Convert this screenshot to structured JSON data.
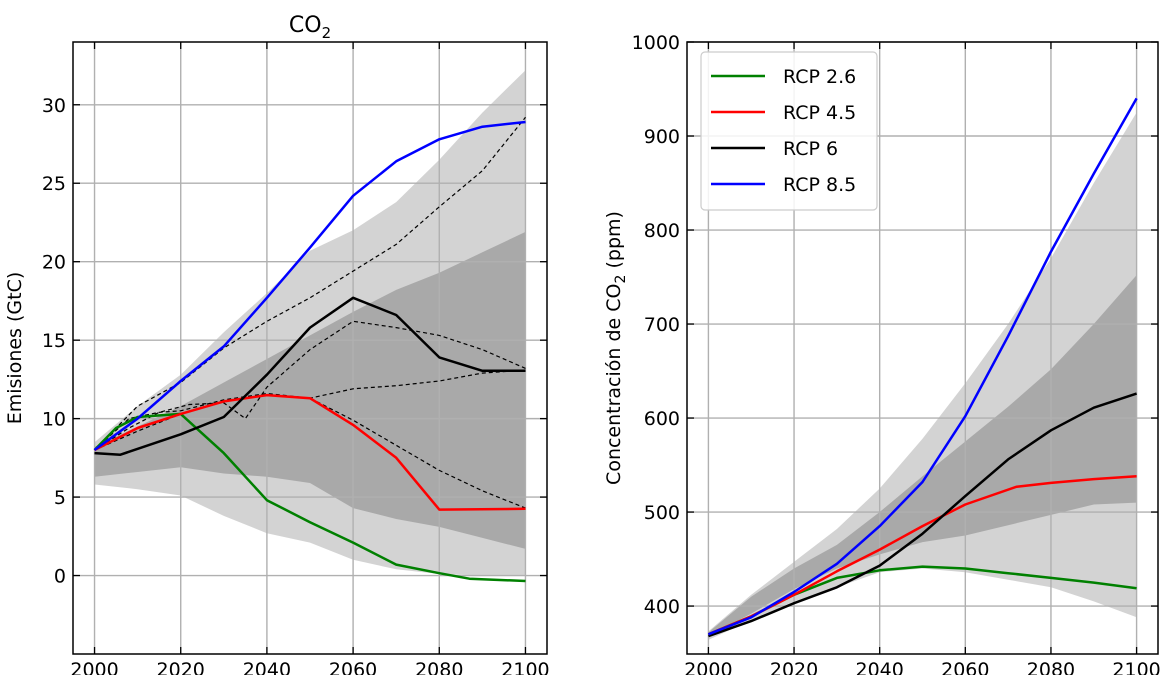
{
  "chart_data": [
    {
      "type": "line",
      "title": "CO",
      "title_subscript": "2",
      "xlabel": "",
      "ylabel": "Emisiones (GtC)",
      "xlim": [
        1995,
        2105
      ],
      "ylim": [
        -5,
        34
      ],
      "xticks": [
        2000,
        2020,
        2040,
        2060,
        2080,
        2100
      ],
      "xtick_labels": [
        "2000",
        "2020",
        "2040",
        "2060",
        "2080",
        "2100"
      ],
      "yticks": [
        0,
        5,
        10,
        15,
        20,
        25,
        30
      ],
      "ytick_labels": [
        "0",
        "5",
        "10",
        "15",
        "20",
        "25",
        "30"
      ],
      "grid": true,
      "legend": "",
      "bands": [
        {
          "color": "#d3d3d3",
          "x": [
            2000,
            2010,
            2020,
            2030,
            2040,
            2050,
            2060,
            2070,
            2080,
            2090,
            2100
          ],
          "lower": [
            5.8,
            5.5,
            5.1,
            3.8,
            2.7,
            2.1,
            1.0,
            0.4,
            0.1,
            0.0,
            0.0
          ],
          "upper": [
            8.5,
            10.8,
            12.8,
            15.5,
            18.0,
            20.7,
            22.0,
            23.8,
            26.5,
            29.5,
            32.2
          ]
        },
        {
          "color": "#a9a9a9",
          "x": [
            2000,
            2010,
            2020,
            2030,
            2040,
            2050,
            2060,
            2070,
            2080,
            2090,
            2100
          ],
          "lower": [
            6.3,
            6.6,
            6.9,
            6.5,
            6.3,
            5.9,
            4.3,
            3.6,
            3.1,
            2.4,
            1.7
          ],
          "upper": [
            8.2,
            9.5,
            10.8,
            12.3,
            13.8,
            15.3,
            16.8,
            18.2,
            19.3,
            20.6,
            21.9
          ]
        }
      ],
      "dashed_series": [
        {
          "x": [
            2000,
            2010,
            2020,
            2030,
            2040,
            2050,
            2060,
            2070,
            2080,
            2090,
            2100
          ],
          "values": [
            8.0,
            10.8,
            12.3,
            14.5,
            16.2,
            17.7,
            19.4,
            21.1,
            23.5,
            25.8,
            29.2
          ]
        },
        {
          "x": [
            2000,
            2008,
            2015,
            2020,
            2030,
            2040,
            2050,
            2060,
            2070,
            2080,
            2090,
            2100
          ],
          "values": [
            8.0,
            10.0,
            10.4,
            10.5,
            11.2,
            11.6,
            11.3,
            9.9,
            8.3,
            6.7,
            5.4,
            4.3
          ]
        },
        {
          "x": [
            2000,
            2010,
            2020,
            2030,
            2040,
            2050,
            2060,
            2070,
            2080,
            2090,
            2100
          ],
          "values": [
            8.0,
            9.2,
            10.3,
            11.1,
            11.5,
            11.3,
            11.9,
            12.1,
            12.4,
            12.9,
            13.1
          ]
        },
        {
          "x": [
            2000,
            2008,
            2015,
            2022,
            2030,
            2035,
            2040,
            2050,
            2060,
            2070,
            2080,
            2090,
            2100
          ],
          "values": [
            8.0,
            9.4,
            10.4,
            10.9,
            11.0,
            10.0,
            12.0,
            14.4,
            16.2,
            15.8,
            15.3,
            14.4,
            13.2
          ]
        }
      ],
      "series": [
        {
          "color": "#008000",
          "x": [
            2000,
            2005,
            2010,
            2020,
            2030,
            2040,
            2050,
            2060,
            2070,
            2080,
            2087,
            2100
          ],
          "values": [
            8.0,
            9.4,
            10.1,
            10.3,
            7.8,
            4.8,
            3.4,
            2.1,
            0.7,
            0.15,
            -0.2,
            -0.35
          ]
        },
        {
          "color": "#ff0000",
          "x": [
            2000,
            2010,
            2020,
            2030,
            2040,
            2050,
            2060,
            2070,
            2080,
            2100
          ],
          "values": [
            8.0,
            9.4,
            10.3,
            11.1,
            11.5,
            11.3,
            9.6,
            7.5,
            4.2,
            4.25
          ]
        },
        {
          "color": "#000000",
          "x": [
            2000,
            2006,
            2020,
            2030,
            2040,
            2050,
            2060,
            2070,
            2080,
            2090,
            2100
          ],
          "values": [
            7.8,
            7.7,
            9.0,
            10.1,
            12.8,
            15.8,
            17.7,
            16.6,
            13.9,
            13.05,
            13.05
          ]
        },
        {
          "color": "#0000ff",
          "x": [
            2000,
            2010,
            2020,
            2030,
            2040,
            2050,
            2060,
            2070,
            2080,
            2090,
            2100
          ],
          "values": [
            8.0,
            10.0,
            12.4,
            14.6,
            17.7,
            20.9,
            24.2,
            26.4,
            27.8,
            28.6,
            28.9
          ]
        }
      ]
    },
    {
      "type": "line",
      "title": "",
      "xlabel": "",
      "ylabel": "Concentración de CO",
      "ylabel_subscript": "2",
      "ylabel_suffix": " (ppm)",
      "xlim": [
        1995,
        2105
      ],
      "ylim": [
        349,
        1000
      ],
      "xticks": [
        2000,
        2020,
        2040,
        2060,
        2080,
        2100
      ],
      "xtick_labels": [
        "2000",
        "2020",
        "2040",
        "2060",
        "2080",
        "2100"
      ],
      "yticks": [
        400,
        500,
        600,
        700,
        800,
        900,
        1000
      ],
      "ytick_labels": [
        "400",
        "500",
        "600",
        "700",
        "800",
        "900",
        "1000"
      ],
      "grid": true,
      "legend": "upper-left",
      "bands": [
        {
          "color": "#d3d3d3",
          "x": [
            2000,
            2010,
            2020,
            2030,
            2040,
            2050,
            2060,
            2070,
            2080,
            2090,
            2100
          ],
          "lower": [
            364,
            385,
            405,
            420,
            436,
            440,
            436,
            428,
            420,
            405,
            388
          ],
          "upper": [
            373,
            412,
            447,
            482,
            525,
            578,
            637,
            700,
            770,
            850,
            925
          ]
        },
        {
          "color": "#a9a9a9",
          "x": [
            2000,
            2010,
            2020,
            2030,
            2040,
            2050,
            2060,
            2070,
            2080,
            2090,
            2100
          ],
          "lower": [
            368,
            392,
            418,
            440,
            455,
            468,
            475,
            486,
            497,
            508,
            510
          ],
          "upper": [
            372,
            410,
            440,
            465,
            500,
            538,
            575,
            612,
            652,
            700,
            752
          ]
        }
      ],
      "series": [
        {
          "name": "RCP 2.6",
          "color": "#008000",
          "x": [
            2000,
            2010,
            2020,
            2030,
            2040,
            2050,
            2060,
            2070,
            2080,
            2090,
            2100
          ],
          "values": [
            370,
            389,
            412,
            430,
            438,
            442,
            440,
            435,
            430,
            425,
            419
          ]
        },
        {
          "name": "RCP 4.5",
          "color": "#ff0000",
          "x": [
            2000,
            2010,
            2020,
            2030,
            2040,
            2050,
            2060,
            2072,
            2080,
            2090,
            2100
          ],
          "values": [
            370,
            389,
            412,
            437,
            460,
            485,
            508,
            527,
            531,
            535,
            538
          ]
        },
        {
          "name": "RCP 6",
          "color": "#000000",
          "x": [
            2000,
            2010,
            2020,
            2030,
            2040,
            2050,
            2060,
            2070,
            2080,
            2090,
            2100
          ],
          "values": [
            368,
            384,
            403,
            420,
            443,
            477,
            517,
            556,
            587,
            611,
            626
          ]
        },
        {
          "name": "RCP 8.5",
          "color": "#0000ff",
          "x": [
            2000,
            2010,
            2020,
            2030,
            2040,
            2050,
            2060,
            2070,
            2080,
            2090,
            2100
          ],
          "values": [
            370,
            388,
            415,
            445,
            485,
            532,
            602,
            687,
            777,
            860,
            940
          ]
        }
      ]
    }
  ]
}
